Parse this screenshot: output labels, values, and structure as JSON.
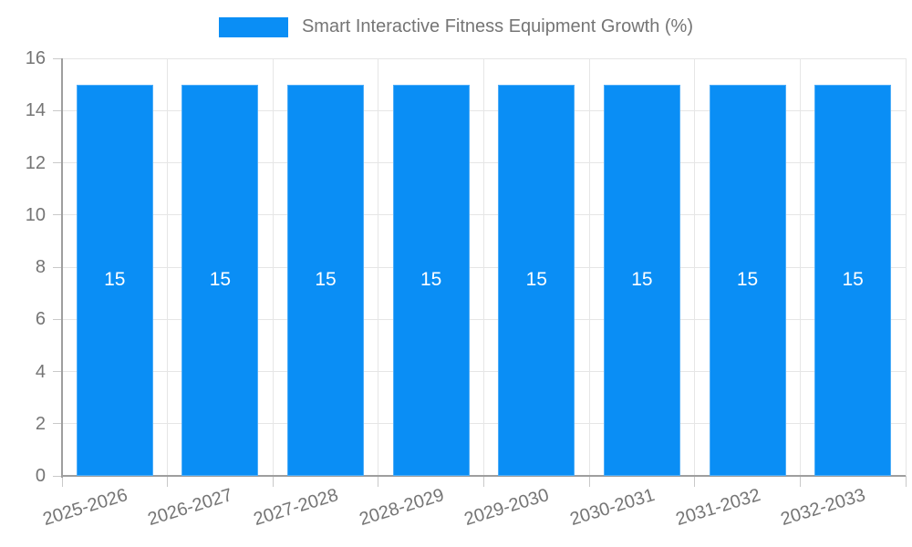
{
  "chart_data": {
    "type": "bar",
    "title": "Smart Interactive Fitness Equipment Growth (%)",
    "categories": [
      "2025-2026",
      "2026-2027",
      "2027-2028",
      "2028-2029",
      "2029-2030",
      "2030-2031",
      "2031-2032",
      "2032-2033"
    ],
    "values": [
      15,
      15,
      15,
      15,
      15,
      15,
      15,
      15
    ],
    "bar_value_labels": [
      "15",
      "15",
      "15",
      "15",
      "15",
      "15",
      "15",
      "15"
    ],
    "yticks": [
      0,
      2,
      4,
      6,
      8,
      10,
      12,
      14,
      16
    ],
    "ylim": [
      0,
      16
    ],
    "xlabel": "",
    "ylabel": "",
    "grid": true,
    "legend_position": "top"
  },
  "colors": {
    "bar": "#0a8ef5",
    "bar_label": "#ffffff",
    "axis": "#9e9e9e",
    "gridline": "#e6e6e6",
    "tick": "#c9c9c9",
    "label_text": "#757575"
  }
}
